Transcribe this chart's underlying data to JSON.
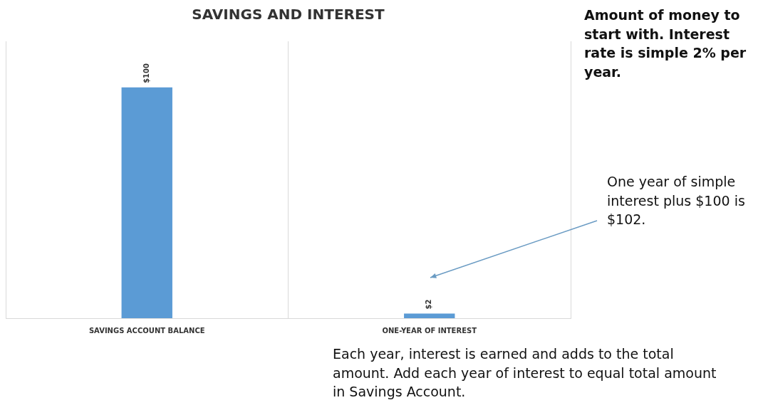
{
  "chart_data": {
    "type": "bar",
    "title": "SAVINGS AND INTEREST",
    "categories": [
      "SAVINGS ACCOUNT BALANCE",
      "ONE-YEAR OF INTEREST"
    ],
    "values": [
      100,
      2
    ],
    "color": "#5b9bd5",
    "tick_labels": "x",
    "value_labels": [
      "$100",
      "$2"
    ],
    "grid": "x",
    "legend": false,
    "annotations": [
      "Amount of money to start with.  Interest rate is simple 2% per year.",
      "One year of simple interest plus $100 is $102.",
      "Each year, interest is earned and adds to the total amount.  Add each year of interest to equal total amount in Savings Account."
    ]
  }
}
